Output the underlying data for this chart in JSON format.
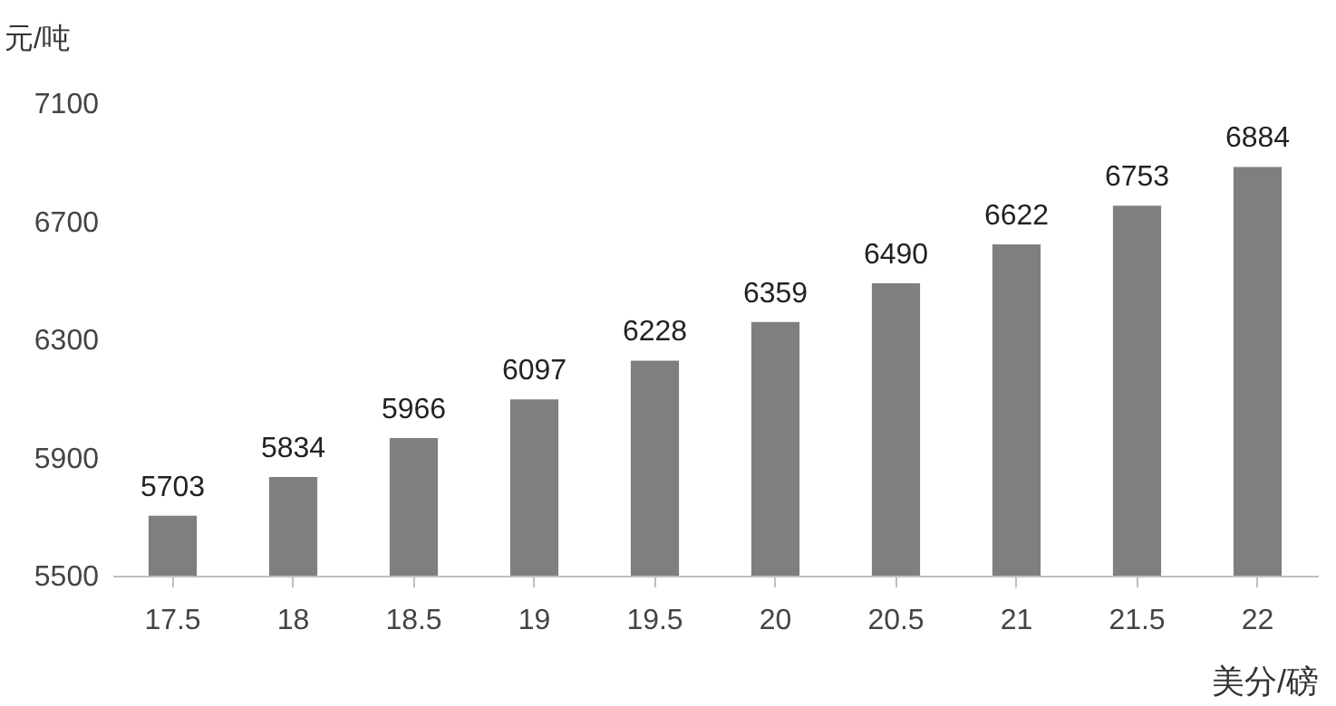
{
  "chart_data": {
    "type": "bar",
    "ylabel": "元/吨",
    "xlabel": "美分/磅",
    "categories": [
      "17.5",
      "18",
      "18.5",
      "19",
      "19.5",
      "20",
      "20.5",
      "21",
      "21.5",
      "22"
    ],
    "values": [
      5703,
      5834,
      5966,
      6097,
      6228,
      6359,
      6490,
      6622,
      6753,
      6884
    ],
    "color": "#7f7f7f",
    "ylim": [
      5500,
      7100
    ],
    "yticks": [
      5500,
      5900,
      6300,
      6700,
      7100
    ],
    "data_labels": true,
    "grid": false
  }
}
